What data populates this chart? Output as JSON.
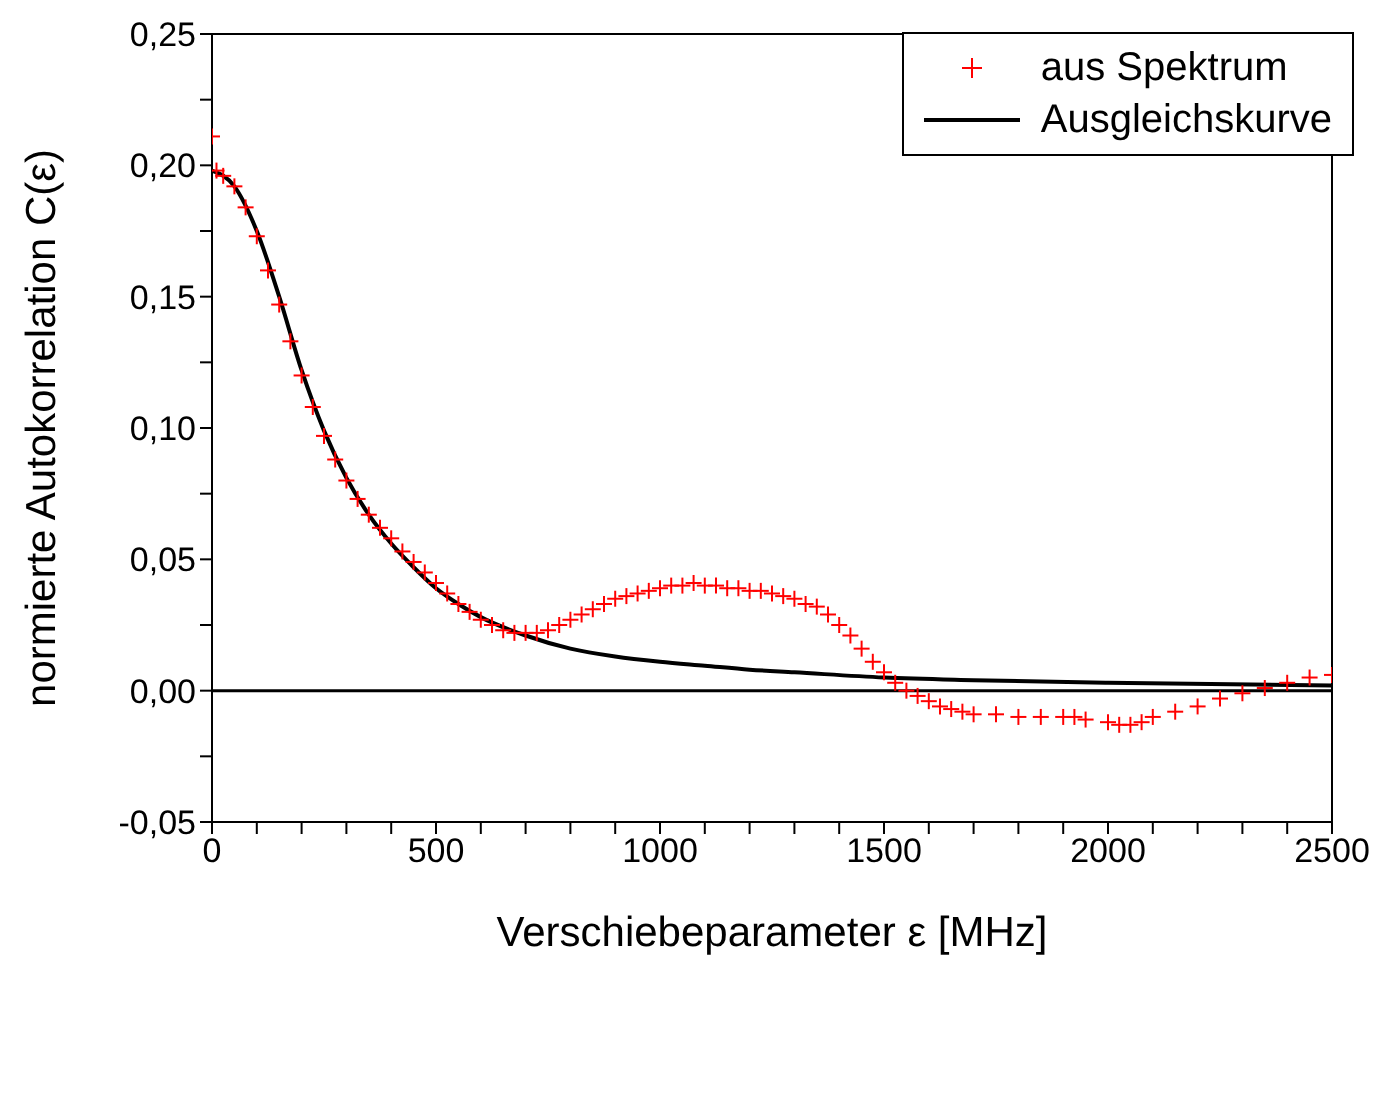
{
  "chart_data": {
    "type": "scatter",
    "xlabel": "Verschiebeparameter ε [MHz]",
    "ylabel": "normierte Autokorrelation C(ε)",
    "xlim": [
      0,
      2500
    ],
    "ylim": [
      -0.05,
      0.25
    ],
    "xticks": [
      0,
      {
        "value": 100,
        "label": null
      },
      {
        "value": 200,
        "label": null
      },
      {
        "value": 300,
        "label": null
      },
      {
        "value": 400,
        "label": null
      },
      500,
      {
        "value": 600,
        "label": null
      },
      {
        "value": 700,
        "label": null
      },
      {
        "value": 800,
        "label": null
      },
      {
        "value": 900,
        "label": null
      },
      1000,
      {
        "value": 1100,
        "label": null
      },
      {
        "value": 1200,
        "label": null
      },
      {
        "value": 1300,
        "label": null
      },
      {
        "value": 1400,
        "label": null
      },
      1500,
      {
        "value": 1600,
        "label": null
      },
      {
        "value": 1700,
        "label": null
      },
      {
        "value": 1800,
        "label": null
      },
      {
        "value": 1900,
        "label": null
      },
      2000,
      {
        "value": 2100,
        "label": null
      },
      {
        "value": 2200,
        "label": null
      },
      {
        "value": 2300,
        "label": null
      },
      {
        "value": 2400,
        "label": null
      },
      2500
    ],
    "yticks": [
      {
        "value": -0.05,
        "label": "-0,05"
      },
      {
        "value": -0.025,
        "label": null
      },
      {
        "value": 0,
        "label": "0,00"
      },
      {
        "value": 0.025,
        "label": null
      },
      {
        "value": 0.05,
        "label": "0,05"
      },
      {
        "value": 0.075,
        "label": null
      },
      {
        "value": 0.1,
        "label": "0,10"
      },
      {
        "value": 0.125,
        "label": null
      },
      {
        "value": 0.15,
        "label": "0,15"
      },
      {
        "value": 0.175,
        "label": null
      },
      {
        "value": 0.2,
        "label": "0,20"
      },
      {
        "value": 0.225,
        "label": null
      },
      {
        "value": 0.25,
        "label": "0,25"
      }
    ],
    "marker": "cross",
    "legend": "top right",
    "ref_lines": [
      {
        "axis": "y",
        "value": 0,
        "color": "#000000"
      }
    ],
    "series": [
      {
        "name": "aus Spektrum",
        "color": "#ff0000",
        "x": [
          0,
          10,
          25,
          50,
          75,
          100,
          125,
          150,
          175,
          200,
          225,
          250,
          275,
          300,
          325,
          350,
          375,
          400,
          425,
          450,
          475,
          500,
          525,
          550,
          575,
          600,
          625,
          650,
          675,
          700,
          725,
          750,
          775,
          800,
          825,
          850,
          875,
          900,
          925,
          950,
          975,
          1000,
          1025,
          1050,
          1075,
          1100,
          1125,
          1150,
          1175,
          1200,
          1225,
          1250,
          1275,
          1300,
          1325,
          1350,
          1375,
          1400,
          1425,
          1450,
          1475,
          1500,
          1525,
          1550,
          1575,
          1600,
          1625,
          1650,
          1675,
          1700,
          1750,
          1800,
          1850,
          1900,
          1925,
          1950,
          2000,
          2025,
          2050,
          2075,
          2100,
          2150,
          2200,
          2250,
          2300,
          2350,
          2400,
          2450,
          2500
        ],
        "values": [
          0.211,
          0.198,
          0.196,
          0.192,
          0.184,
          0.173,
          0.16,
          0.147,
          0.133,
          0.12,
          0.108,
          0.097,
          0.088,
          0.08,
          0.073,
          0.067,
          0.062,
          0.058,
          0.053,
          0.049,
          0.045,
          0.041,
          0.037,
          0.033,
          0.03,
          0.027,
          0.025,
          0.023,
          0.022,
          0.022,
          0.022,
          0.023,
          0.025,
          0.027,
          0.029,
          0.031,
          0.033,
          0.035,
          0.036,
          0.037,
          0.038,
          0.039,
          0.04,
          0.04,
          0.041,
          0.04,
          0.04,
          0.039,
          0.039,
          0.038,
          0.038,
          0.037,
          0.036,
          0.035,
          0.033,
          0.032,
          0.029,
          0.025,
          0.021,
          0.016,
          0.011,
          0.007,
          0.003,
          0.0,
          -0.002,
          -0.004,
          -0.006,
          -0.007,
          -0.008,
          -0.009,
          -0.009,
          -0.01,
          -0.01,
          -0.01,
          -0.01,
          -0.011,
          -0.012,
          -0.013,
          -0.013,
          -0.012,
          -0.01,
          -0.008,
          -0.006,
          -0.003,
          -0.001,
          0.001,
          0.003,
          0.005,
          0.006
        ]
      },
      {
        "name": "Ausgleichskurve",
        "type": "line",
        "color": "#000000",
        "marker": "none",
        "x": [
          0,
          50,
          100,
          150,
          200,
          250,
          300,
          350,
          400,
          450,
          500,
          550,
          600,
          700,
          800,
          900,
          1000,
          1100,
          1200,
          1300,
          1500,
          1700,
          2000,
          2500
        ],
        "values": [
          0.198,
          0.192,
          0.175,
          0.15,
          0.122,
          0.099,
          0.081,
          0.067,
          0.056,
          0.047,
          0.039,
          0.033,
          0.028,
          0.021,
          0.016,
          0.013,
          0.011,
          0.0095,
          0.008,
          0.007,
          0.005,
          0.004,
          0.003,
          0.002
        ]
      }
    ]
  }
}
